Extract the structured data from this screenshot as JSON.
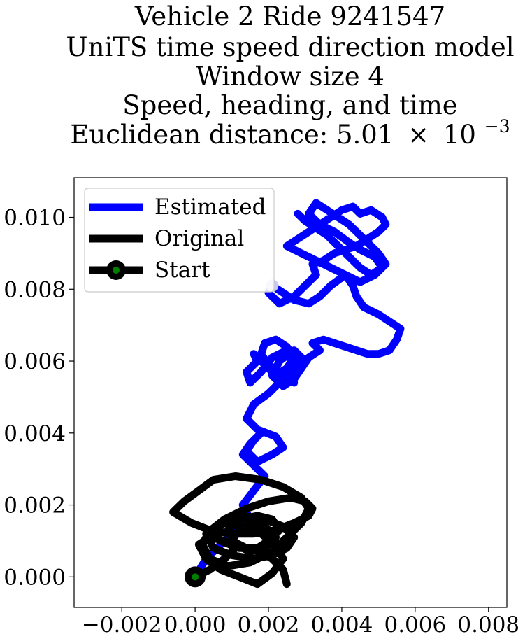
{
  "chart_data": {
    "type": "line",
    "title": {
      "lines": [
        "Vehicle 2 Ride 9241547",
        "UniTS time speed direction model",
        "Window size 4",
        "Speed, heading, and time"
      ],
      "distance_prefix": "Euclidean distance: 5.01",
      "distance_times": "×",
      "distance_base": "10",
      "distance_exponent": "−3"
    },
    "xlim": [
      -0.0033,
      0.0085
    ],
    "ylim": [
      -0.00085,
      0.0111
    ],
    "x_ticks": [
      {
        "value": -0.002,
        "label": "−0.002"
      },
      {
        "value": 0.0,
        "label": "0.000"
      },
      {
        "value": 0.002,
        "label": "0.002"
      },
      {
        "value": 0.004,
        "label": "0.004"
      },
      {
        "value": 0.006,
        "label": "0.006"
      },
      {
        "value": 0.008,
        "label": "0.008"
      }
    ],
    "y_ticks": [
      {
        "value": 0.0,
        "label": "0.000"
      },
      {
        "value": 0.002,
        "label": "0.002"
      },
      {
        "value": 0.004,
        "label": "0.004"
      },
      {
        "value": 0.006,
        "label": "0.006"
      },
      {
        "value": 0.008,
        "label": "0.008"
      },
      {
        "value": 0.01,
        "label": "0.010"
      }
    ],
    "grid": false,
    "legend_position": "top-left",
    "series": [
      {
        "name": "Estimated",
        "color": "#0000ff",
        "x": [
          0.0,
          0.0003,
          0.0007,
          0.0011,
          0.0015,
          0.0013,
          0.0016,
          0.0019,
          0.0016,
          0.0013,
          0.0015,
          0.0018,
          0.0016,
          0.0014,
          0.0017,
          0.0021,
          0.0024,
          0.0022,
          0.0017,
          0.0014,
          0.0016,
          0.002,
          0.0024,
          0.0027,
          0.0026,
          0.0029,
          0.0027,
          0.0023,
          0.0021,
          0.0024,
          0.0027,
          0.0029,
          0.0028,
          0.0025,
          0.0021,
          0.0018,
          0.0015,
          0.0014,
          0.0017,
          0.0016,
          0.0019,
          0.0022,
          0.0025,
          0.0027,
          0.0025,
          0.0022,
          0.0019,
          0.0018,
          0.002,
          0.0023,
          0.0026,
          0.0029,
          0.0031,
          0.0034,
          0.0032,
          0.0035,
          0.0038,
          0.0041,
          0.0044,
          0.0047,
          0.005,
          0.0053,
          0.0055,
          0.0056,
          0.0053,
          0.005,
          0.0046,
          0.0044,
          0.0043,
          0.0041,
          0.0037,
          0.0034,
          0.0031,
          0.0027,
          0.0024,
          0.0021,
          0.002,
          0.0023,
          0.0027,
          0.003,
          0.0033,
          0.0032,
          0.0035,
          0.0038,
          0.0041,
          0.0044,
          0.0047,
          0.005,
          0.0052,
          0.0051,
          0.0048,
          0.0045,
          0.0043,
          0.004,
          0.0037,
          0.0034,
          0.0031,
          0.0028,
          0.0025,
          0.0029,
          0.0033,
          0.0037,
          0.0041,
          0.0045,
          0.0049,
          0.0052,
          0.005,
          0.0047,
          0.0045,
          0.0042,
          0.0039,
          0.0036,
          0.0033,
          0.0031,
          0.0034,
          0.0038,
          0.0042,
          0.0045,
          0.0049,
          0.0051,
          0.0048,
          0.0045,
          0.0042,
          0.0039,
          0.0036,
          0.0033,
          0.003,
          0.0028
        ],
        "y": [
          0.0,
          0.0005,
          0.0009,
          0.0013,
          0.0016,
          0.002,
          0.0024,
          0.0028,
          0.0031,
          0.0034,
          0.0037,
          0.004,
          0.0038,
          0.0035,
          0.0032,
          0.0034,
          0.0036,
          0.0039,
          0.0041,
          0.0044,
          0.0048,
          0.0051,
          0.0055,
          0.0054,
          0.0058,
          0.0061,
          0.0063,
          0.006,
          0.0056,
          0.0053,
          0.0055,
          0.0058,
          0.0062,
          0.0063,
          0.0061,
          0.0057,
          0.0054,
          0.0057,
          0.006,
          0.0062,
          0.0059,
          0.0056,
          0.0058,
          0.0061,
          0.0064,
          0.0066,
          0.0065,
          0.0062,
          0.0059,
          0.0057,
          0.0055,
          0.0058,
          0.0061,
          0.0063,
          0.0065,
          0.0066,
          0.0065,
          0.0064,
          0.0063,
          0.0062,
          0.0062,
          0.0063,
          0.0066,
          0.0069,
          0.0071,
          0.0073,
          0.0075,
          0.0078,
          0.0081,
          0.0084,
          0.0081,
          0.0078,
          0.0076,
          0.0077,
          0.0079,
          0.0081,
          0.0079,
          0.0076,
          0.0078,
          0.0081,
          0.0084,
          0.0087,
          0.0088,
          0.009,
          0.0091,
          0.0092,
          0.0094,
          0.0096,
          0.0098,
          0.01,
          0.0102,
          0.0101,
          0.0103,
          0.0102,
          0.01,
          0.0098,
          0.0096,
          0.0094,
          0.0092,
          0.009,
          0.0088,
          0.0086,
          0.0084,
          0.0082,
          0.0084,
          0.0087,
          0.009,
          0.0093,
          0.0095,
          0.0098,
          0.01,
          0.0102,
          0.0104,
          0.0101,
          0.0098,
          0.0096,
          0.0093,
          0.0091,
          0.0089,
          0.0086,
          0.0084,
          0.0086,
          0.0089,
          0.0092,
          0.0095,
          0.0097,
          0.0099,
          0.0101
        ]
      },
      {
        "name": "Original",
        "color": "#000000",
        "x": [
          0.0,
          0.0004,
          0.0008,
          0.0011,
          0.0008,
          0.0004,
          0.0001,
          0.0003,
          0.0007,
          0.0012,
          0.0017,
          0.0021,
          0.0024,
          0.0022,
          0.0018,
          0.0013,
          0.0008,
          0.0004,
          0.0002,
          0.0004,
          0.0009,
          0.0015,
          0.0021,
          0.0025,
          0.0029,
          0.0031,
          0.0029,
          0.0024,
          0.0018,
          0.0011,
          0.0005,
          0.0001,
          -0.0003,
          -0.0006,
          -0.0001,
          0.0004,
          0.001,
          0.0016,
          0.0022,
          0.0027,
          0.0031,
          0.0032,
          0.003,
          0.0026,
          0.002,
          0.0014,
          0.0008,
          0.0003,
          0.0005,
          0.001,
          0.0016,
          0.0021,
          0.0025,
          0.0027,
          0.0024,
          0.0019,
          0.0013,
          0.0008,
          0.0005,
          0.0007,
          0.0012,
          0.0017,
          0.002,
          0.0023,
          0.0021,
          0.0017,
          0.0012,
          0.0009,
          0.0011,
          0.0015,
          0.0019,
          0.0022,
          0.0019,
          0.0015,
          0.0012,
          0.001,
          0.0014,
          0.0018,
          0.0021,
          0.0024,
          0.0025
        ],
        "y": [
          0.0,
          0.0002,
          0.0005,
          0.0008,
          0.001,
          0.0011,
          0.0009,
          0.0005,
          0.0002,
          0.0,
          -0.0002,
          0.0001,
          0.0005,
          0.0009,
          0.0012,
          0.0014,
          0.0015,
          0.0013,
          0.0009,
          0.0005,
          0.0003,
          0.0004,
          0.0007,
          0.0011,
          0.0015,
          0.0019,
          0.0022,
          0.0025,
          0.0027,
          0.0028,
          0.0027,
          0.0024,
          0.0021,
          0.0018,
          0.0015,
          0.0013,
          0.0012,
          0.0012,
          0.0013,
          0.0015,
          0.0017,
          0.0019,
          0.0021,
          0.0022,
          0.0021,
          0.0019,
          0.0016,
          0.0012,
          0.0008,
          0.0006,
          0.0005,
          0.0006,
          0.0008,
          0.0011,
          0.0014,
          0.0016,
          0.0017,
          0.0016,
          0.0013,
          0.001,
          0.0008,
          0.0008,
          0.001,
          0.0013,
          0.0016,
          0.0017,
          0.0016,
          0.0013,
          0.0009,
          0.0007,
          0.0008,
          0.0011,
          0.0014,
          0.0015,
          0.0013,
          0.001,
          0.0008,
          0.0007,
          0.0005,
          0.0002,
          -0.0002
        ]
      }
    ],
    "start": {
      "name": "Start",
      "x": 0.0,
      "y": 0.0,
      "outer_color": "#000000",
      "inner_color": "#008000"
    },
    "estimated_endpoint": {
      "x": 0.0021,
      "y": 0.0081,
      "color": "#c8c8f0"
    }
  }
}
